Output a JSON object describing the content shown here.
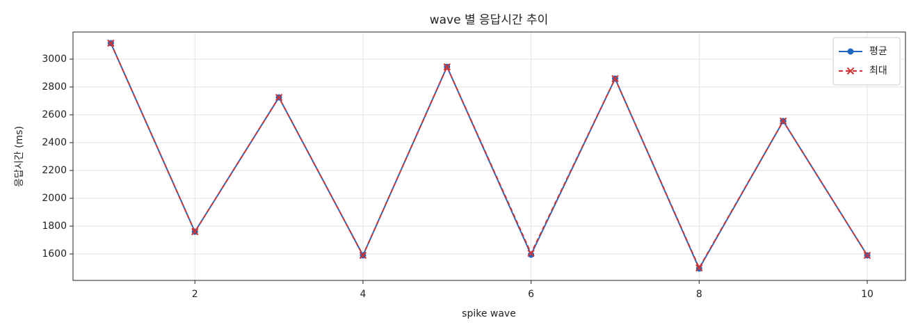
{
  "chart_data": {
    "type": "line",
    "title": "wave 별 응답시간 추이",
    "x_label": "spike wave",
    "y_label": "응답시간 (ms)",
    "x": [
      1,
      2,
      3,
      4,
      5,
      6,
      7,
      8,
      9,
      10
    ],
    "series": [
      {
        "name": "평균",
        "color": "#1f68c1",
        "marker": "o",
        "linestyle": "solid",
        "values": [
          3115,
          1760,
          2725,
          1590,
          2945,
          1595,
          2860,
          1495,
          2555,
          1590
        ]
      },
      {
        "name": "최대",
        "color": "#d03232",
        "marker": "x",
        "linestyle": "dashed",
        "values": [
          3115,
          1760,
          2725,
          1590,
          2945,
          1605,
          2860,
          1500,
          2555,
          1590
        ]
      }
    ],
    "xlim": [
      0.55,
      10.455
    ],
    "ylim": [
      1410,
      3195
    ],
    "xticks": [
      2,
      4,
      6,
      8,
      10
    ],
    "yticks": [
      1600,
      1800,
      2000,
      2200,
      2400,
      2600,
      2800,
      3000
    ],
    "grid": true,
    "legend": "upper right"
  }
}
